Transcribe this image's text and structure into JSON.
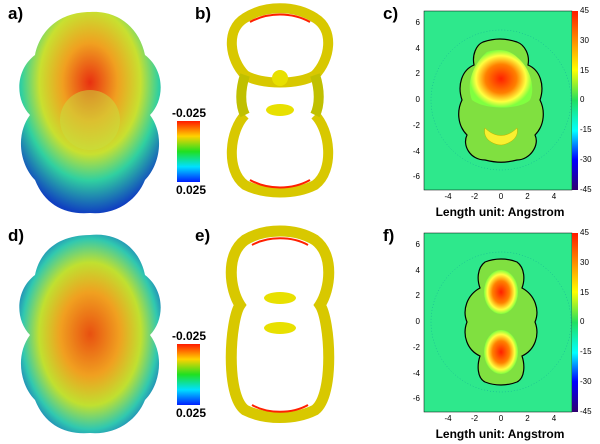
{
  "panels": [
    {
      "label": "a)",
      "colorbar": {
        "top": "-0.025",
        "bottom": "0.025"
      }
    },
    {
      "label": "b)"
    },
    {
      "label": "c)",
      "xlabel": "Length unit: Angstrom",
      "yticks": [
        "6",
        "4",
        "2",
        "0",
        "-2",
        "-4",
        "-6"
      ],
      "xticks": [
        "-4",
        "-2",
        "0",
        "2",
        "4"
      ],
      "colorbar_ticks": [
        "45",
        "30",
        "15",
        "0",
        "-15",
        "-30",
        "-45"
      ]
    },
    {
      "label": "d)",
      "colorbar": {
        "top": "-0.025",
        "bottom": "0.025"
      }
    },
    {
      "label": "e)"
    },
    {
      "label": "f)",
      "xlabel": "Length unit: Angstrom",
      "yticks": [
        "6",
        "4",
        "2",
        "0",
        "-2",
        "-4",
        "-6"
      ],
      "xticks": [
        "-4",
        "-2",
        "0",
        "2",
        "4"
      ],
      "colorbar_ticks": [
        "45",
        "30",
        "15",
        "0",
        "-15",
        "-30",
        "-45"
      ]
    }
  ],
  "colors": {
    "esp_gradient": [
      "#ff2000",
      "#ffd000",
      "#20e020",
      "#00e0ff",
      "#0030ff"
    ],
    "contour_bg": "#2ee88c",
    "arrow": "#ff2000"
  }
}
